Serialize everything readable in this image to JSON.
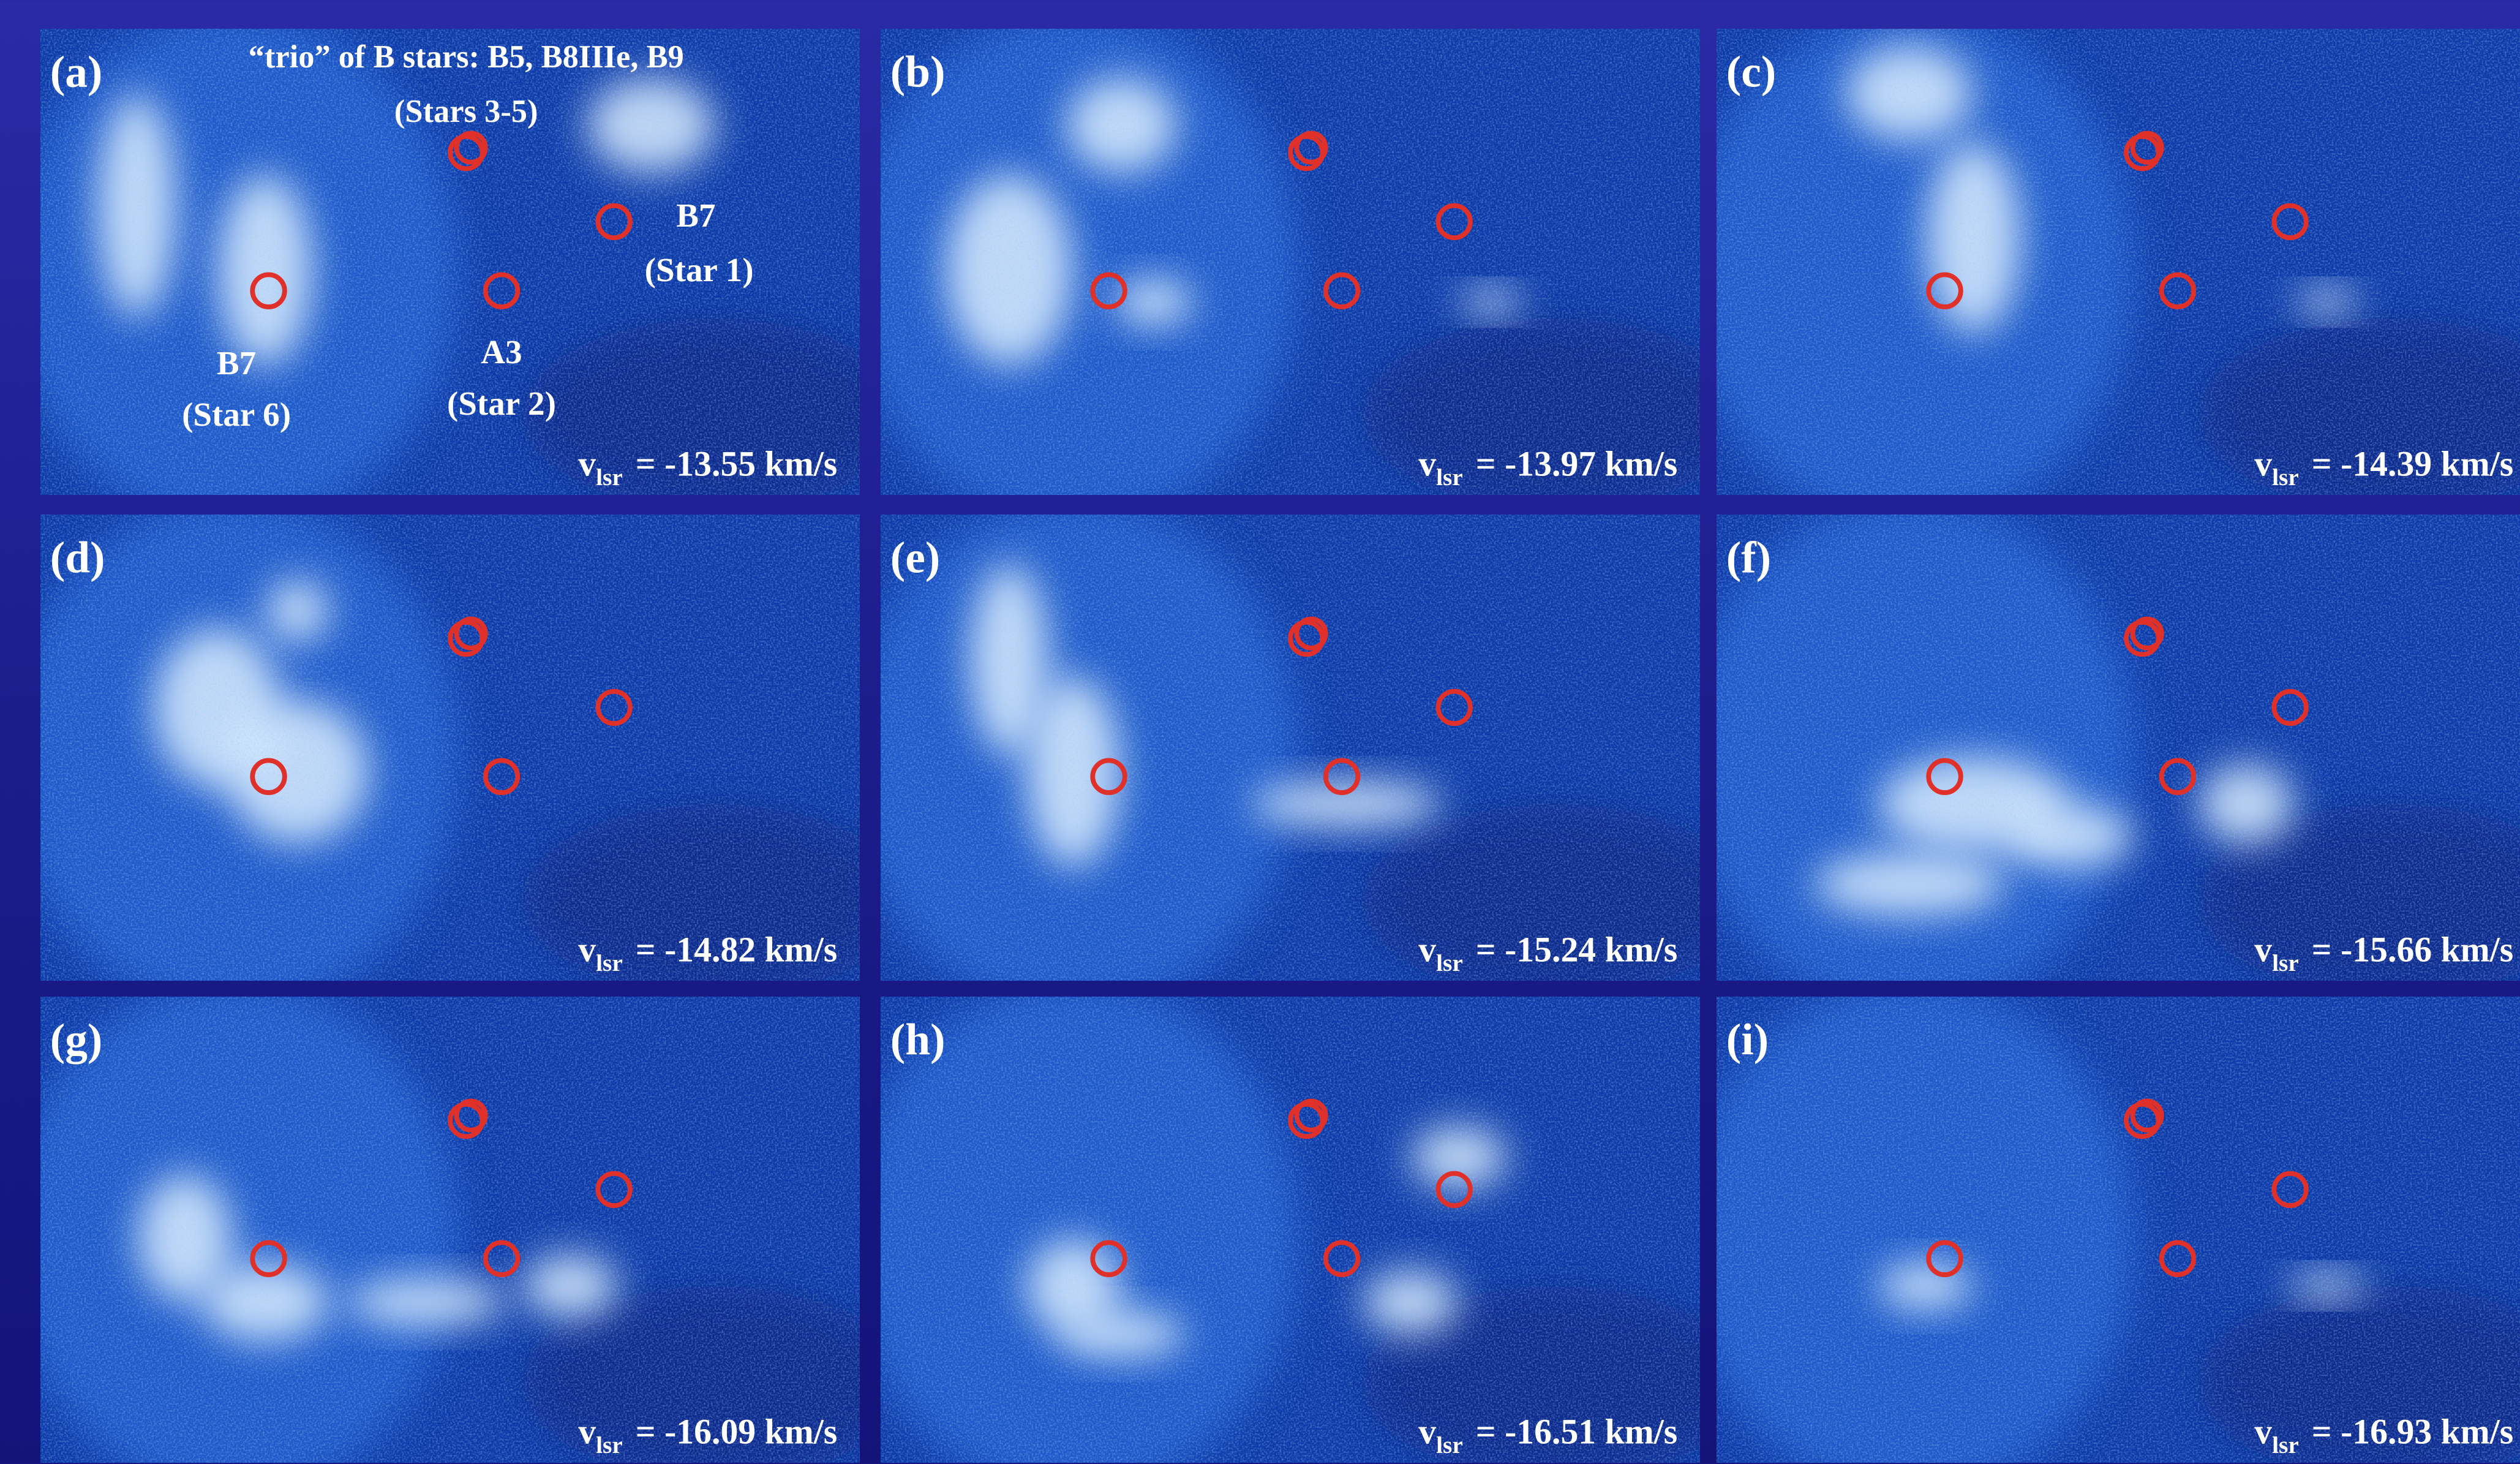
{
  "panels": [
    {
      "label": "(a)",
      "velocity": {
        "symbol": "v",
        "subscript": "lsr",
        "text": "= -13.55 km/s"
      },
      "annotations": [
        "“trio” of B stars: B5, B8IIIe, B9",
        "(Stars 3-5)",
        "B7",
        "(Star 1)",
        "A3",
        "(Star 2)",
        "B7",
        "(Star 6)"
      ]
    },
    {
      "label": "(b)",
      "velocity": {
        "symbol": "v",
        "subscript": "lsr",
        "text": "= -13.97 km/s"
      }
    },
    {
      "label": "(c)",
      "velocity": {
        "symbol": "v",
        "subscript": "lsr",
        "text": "= -14.39 km/s"
      }
    },
    {
      "label": "(d)",
      "velocity": {
        "symbol": "v",
        "subscript": "lsr",
        "text": "= -14.82 km/s"
      }
    },
    {
      "label": "(e)",
      "velocity": {
        "symbol": "v",
        "subscript": "lsr",
        "text": "= -15.24 km/s"
      }
    },
    {
      "label": "(f)",
      "velocity": {
        "symbol": "v",
        "subscript": "lsr",
        "text": "= -15.66 km/s"
      }
    },
    {
      "label": "(g)",
      "velocity": {
        "symbol": "v",
        "subscript": "lsr",
        "text": "= -16.09 km/s"
      }
    },
    {
      "label": "(h)",
      "velocity": {
        "symbol": "v",
        "subscript": "lsr",
        "text": "= -16.51 km/s"
      }
    },
    {
      "label": "(i)",
      "velocity": {
        "symbol": "v",
        "subscript": "lsr",
        "text": "= -16.93 km/s"
      }
    }
  ]
}
